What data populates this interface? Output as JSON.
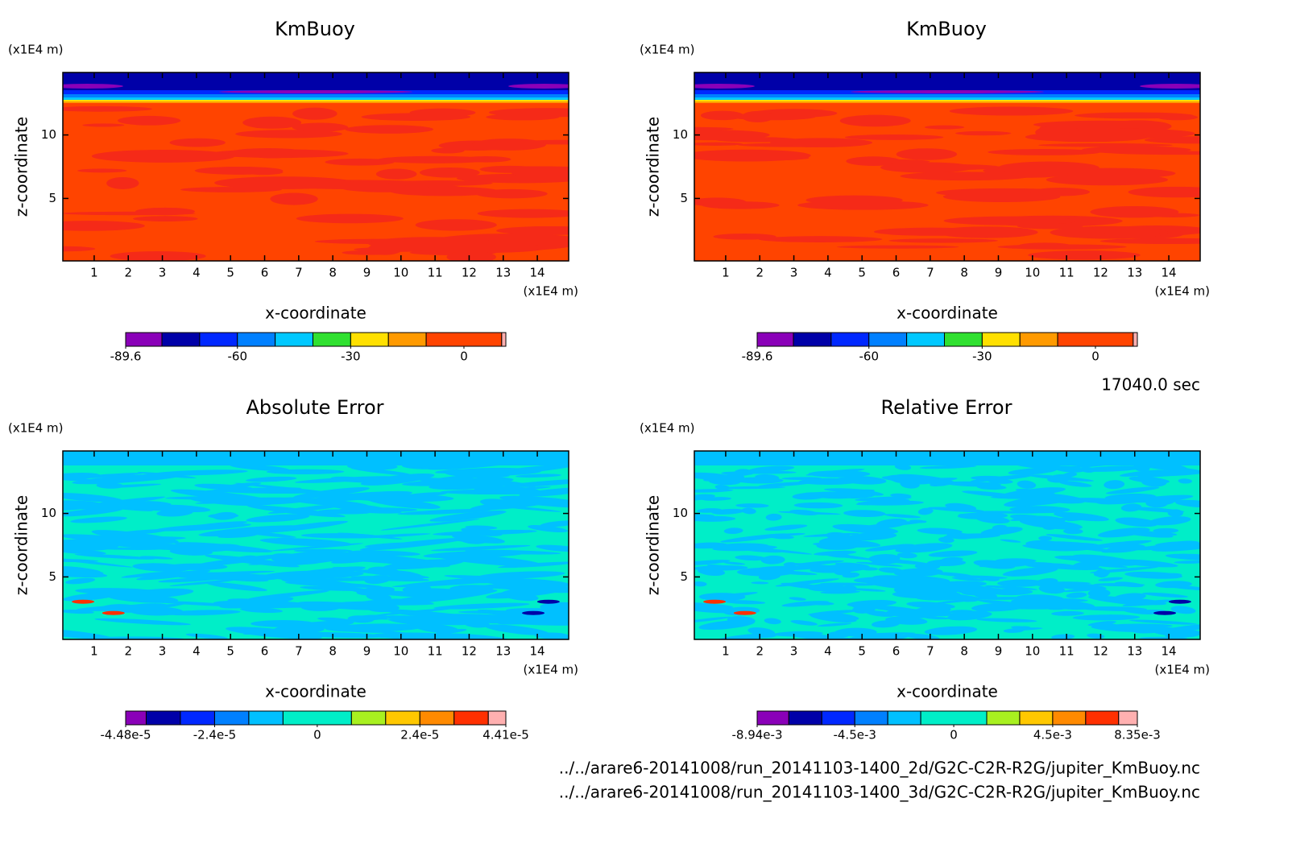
{
  "chart_data": [
    {
      "type": "contour",
      "title": "KmBuoy",
      "xlabel": "x-coordinate",
      "ylabel": "z-coordinate",
      "x_unit": "(x1E4 m)",
      "y_unit": "(x1E4 m)",
      "xlim": [
        0.08,
        14.92
      ],
      "ylim": [
        0.08,
        14.92
      ],
      "xticks": [
        1,
        2,
        3,
        4,
        5,
        6,
        7,
        8,
        9,
        10,
        11,
        12,
        13,
        14
      ],
      "yticks": [
        5,
        10
      ],
      "colorbar": {
        "levels": [
          -89.6,
          -80,
          -70,
          -60,
          -50,
          -40,
          -30,
          -20,
          -10,
          10,
          11.1
        ],
        "colors": [
          "#8a00b8",
          "#0000a8",
          "#0028ff",
          "#0080ff",
          "#00c8ff",
          "#30e030",
          "#ffe000",
          "#ff9a00",
          "#ff4400",
          "#ffb0b0"
        ],
        "ticks": [
          -89.6,
          -60,
          -30,
          0
        ]
      }
    },
    {
      "type": "contour",
      "title": "KmBuoy",
      "xlabel": "x-coordinate",
      "ylabel": "z-coordinate",
      "x_unit": "(x1E4 m)",
      "y_unit": "(x1E4 m)",
      "xlim": [
        0.08,
        14.92
      ],
      "ylim": [
        0.08,
        14.92
      ],
      "xticks": [
        1,
        2,
        3,
        4,
        5,
        6,
        7,
        8,
        9,
        10,
        11,
        12,
        13,
        14
      ],
      "yticks": [
        5,
        10
      ],
      "colorbar": {
        "levels": [
          -89.6,
          -80,
          -70,
          -60,
          -50,
          -40,
          -30,
          -20,
          -10,
          10,
          11.1
        ],
        "colors": [
          "#8a00b8",
          "#0000a8",
          "#0028ff",
          "#0080ff",
          "#00c8ff",
          "#30e030",
          "#ffe000",
          "#ff9a00",
          "#ff4400",
          "#ffb0b0"
        ],
        "ticks": [
          -89.6,
          -60,
          -30,
          0
        ]
      }
    },
    {
      "type": "contour",
      "title": "Absolute Error",
      "xlabel": "x-coordinate",
      "ylabel": "z-coordinate",
      "x_unit": "(x1E4 m)",
      "y_unit": "(x1E4 m)",
      "xlim": [
        0.08,
        14.92
      ],
      "ylim": [
        0.08,
        14.92
      ],
      "xticks": [
        1,
        2,
        3,
        4,
        5,
        6,
        7,
        8,
        9,
        10,
        11,
        12,
        13,
        14
      ],
      "yticks": [
        5,
        10
      ],
      "colorbar": {
        "levels": [
          -4.48e-05,
          -4e-05,
          -3.2e-05,
          -2.4e-05,
          -1.6e-05,
          -8e-06,
          8e-06,
          1.6e-05,
          2.4e-05,
          3.2e-05,
          4e-05,
          4.41e-05
        ],
        "colors": [
          "#8a00b8",
          "#0000a8",
          "#0028ff",
          "#0080ff",
          "#00c0ff",
          "#00eec8",
          "#a8f020",
          "#ffc800",
          "#ff8a00",
          "#ff3000",
          "#ffb0b0"
        ],
        "ticks": [
          {
            "value": -4.48e-05,
            "label": "-4.48e-5"
          },
          {
            "value": -2.4e-05,
            "label": "-2.4e-5"
          },
          0,
          {
            "value": 2.4e-05,
            "label": "2.4e-5"
          },
          {
            "value": 4.41e-05,
            "label": "4.41e-5"
          }
        ]
      }
    },
    {
      "type": "contour",
      "title": "Relative Error",
      "xlabel": "x-coordinate",
      "ylabel": "z-coordinate",
      "x_unit": "(x1E4 m)",
      "y_unit": "(x1E4 m)",
      "xlim": [
        0.08,
        14.92
      ],
      "ylim": [
        0.08,
        14.92
      ],
      "xticks": [
        1,
        2,
        3,
        4,
        5,
        6,
        7,
        8,
        9,
        10,
        11,
        12,
        13,
        14
      ],
      "yticks": [
        5,
        10
      ],
      "colorbar": {
        "levels": [
          -0.00894,
          -0.0075,
          -0.006,
          -0.0045,
          -0.003,
          -0.0015,
          0.0015,
          0.003,
          0.0045,
          0.006,
          0.0075,
          0.00835
        ],
        "colors": [
          "#8a00b8",
          "#0000a8",
          "#0028ff",
          "#0080ff",
          "#00c0ff",
          "#00eec8",
          "#a8f020",
          "#ffc800",
          "#ff8a00",
          "#ff3000",
          "#ffb0b0"
        ],
        "ticks": [
          {
            "value": -0.00894,
            "label": "-8.94e-3"
          },
          {
            "value": -0.0045,
            "label": "-4.5e-3"
          },
          0,
          {
            "value": 0.0045,
            "label": "4.5e-3"
          },
          {
            "value": 0.00835,
            "label": "8.35e-3"
          }
        ]
      }
    }
  ],
  "time": "17040.0 sec",
  "files": [
    "../../arare6-20141008/run_20141103-1400_2d/G2C-C2R-R2G/jupiter_KmBuoy.nc",
    "../../arare6-20141008/run_20141103-1400_3d/G2C-C2R-R2G/jupiter_KmBuoy.nc"
  ]
}
